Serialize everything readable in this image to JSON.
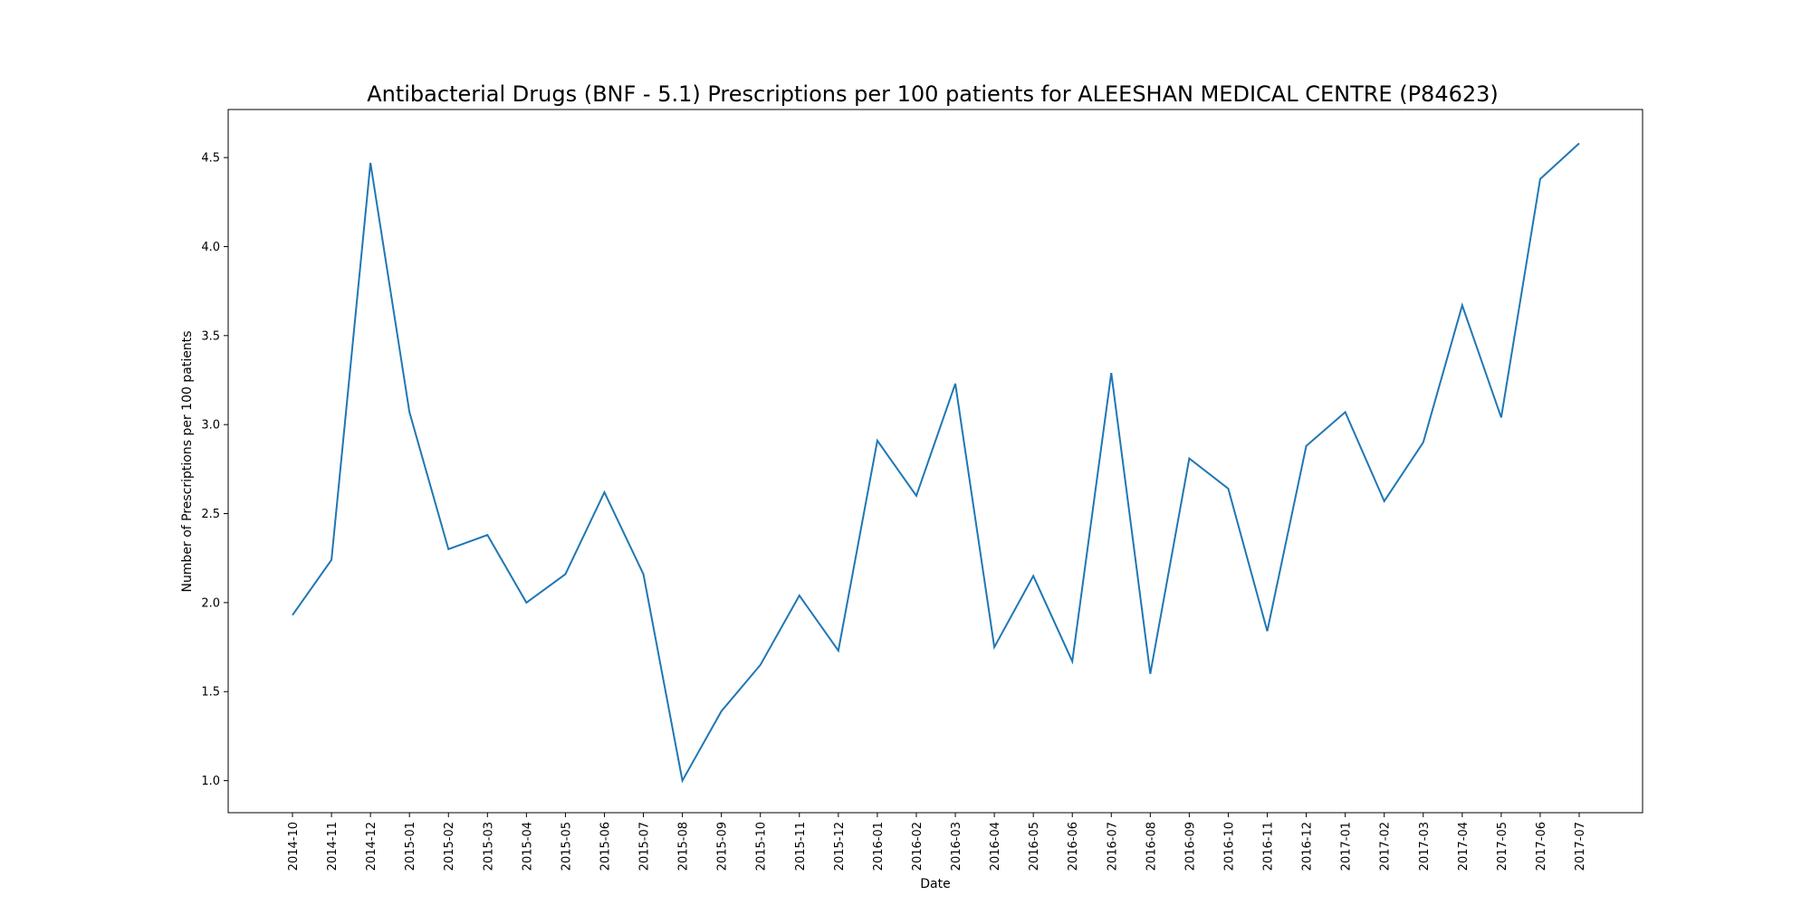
{
  "chart_data": {
    "type": "line",
    "title": "Antibacterial Drugs (BNF - 5.1) Prescriptions per 100 patients for ALEESHAN MEDICAL CENTRE (P84623)",
    "xlabel": "Date",
    "ylabel": "Number of Prescriptions per 100 patients",
    "ylim": [
      0.82,
      4.77
    ],
    "yticks": [
      "1.0",
      "1.5",
      "2.0",
      "2.5",
      "3.0",
      "3.5",
      "4.0",
      "4.5"
    ],
    "grid": false,
    "line_color": "#1f77b4",
    "x": [
      "2014-10",
      "2014-11",
      "2014-12",
      "2015-01",
      "2015-02",
      "2015-03",
      "2015-04",
      "2015-05",
      "2015-06",
      "2015-07",
      "2015-08",
      "2015-09",
      "2015-10",
      "2015-11",
      "2015-12",
      "2016-01",
      "2016-02",
      "2016-03",
      "2016-04",
      "2016-05",
      "2016-06",
      "2016-07",
      "2016-08",
      "2016-09",
      "2016-10",
      "2016-11",
      "2016-12",
      "2017-01",
      "2017-02",
      "2017-03",
      "2017-04",
      "2017-05",
      "2017-06",
      "2017-07"
    ],
    "series": [
      {
        "values": [
          1.93,
          2.24,
          4.47,
          3.07,
          2.3,
          2.38,
          2.0,
          2.16,
          2.62,
          2.16,
          1.0,
          1.39,
          1.65,
          2.04,
          1.73,
          2.91,
          2.6,
          3.23,
          1.75,
          2.15,
          1.67,
          3.29,
          1.6,
          2.81,
          2.64,
          1.84,
          2.88,
          3.07,
          2.57,
          2.9,
          3.67,
          3.04,
          4.38,
          4.58
        ]
      }
    ]
  }
}
